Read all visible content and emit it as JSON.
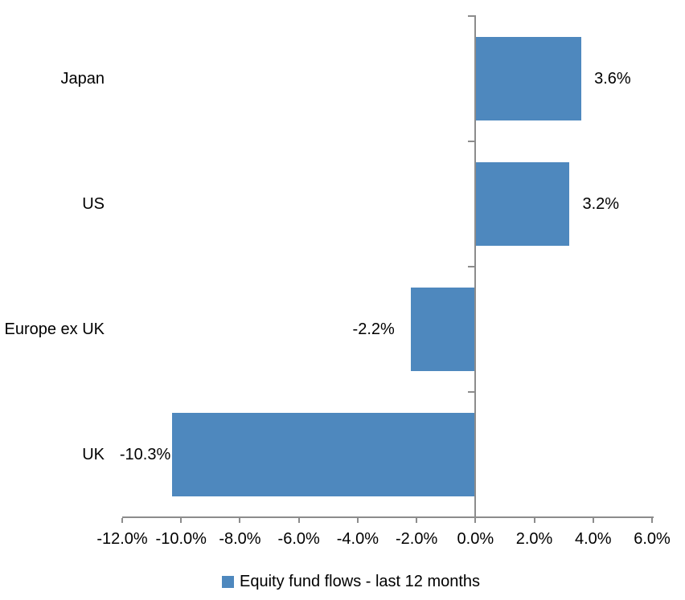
{
  "chart_data": {
    "type": "bar",
    "orientation": "horizontal",
    "title": "",
    "categories": [
      "Japan",
      "US",
      "Europe ex UK",
      "UK"
    ],
    "values": [
      3.6,
      3.2,
      -2.2,
      -10.3
    ],
    "data_labels": [
      "3.6%",
      "3.2%",
      "-2.2%",
      "-10.3%"
    ],
    "series": [
      {
        "name": "Equity fund flows - last 12 months",
        "values": [
          3.6,
          3.2,
          -2.2,
          -10.3
        ]
      }
    ],
    "xlim": [
      -12,
      6
    ],
    "x_tick_step": 2,
    "x_tick_labels": [
      "-12.0%",
      "-10.0%",
      "-8.0%",
      "-6.0%",
      "-4.0%",
      "-2.0%",
      "0.0%",
      "2.0%",
      "4.0%",
      "6.0%"
    ],
    "xlabel": "",
    "ylabel": "",
    "grid": false,
    "legend_position": "bottom-center",
    "legend": {
      "label": "Equity fund flows - last 12 months",
      "swatch_color": "#4E88BE"
    },
    "colors": {
      "bar": "#4E88BE",
      "axis": "#8C8C8C",
      "text": "#000000",
      "background": "#FFFFFF"
    }
  }
}
